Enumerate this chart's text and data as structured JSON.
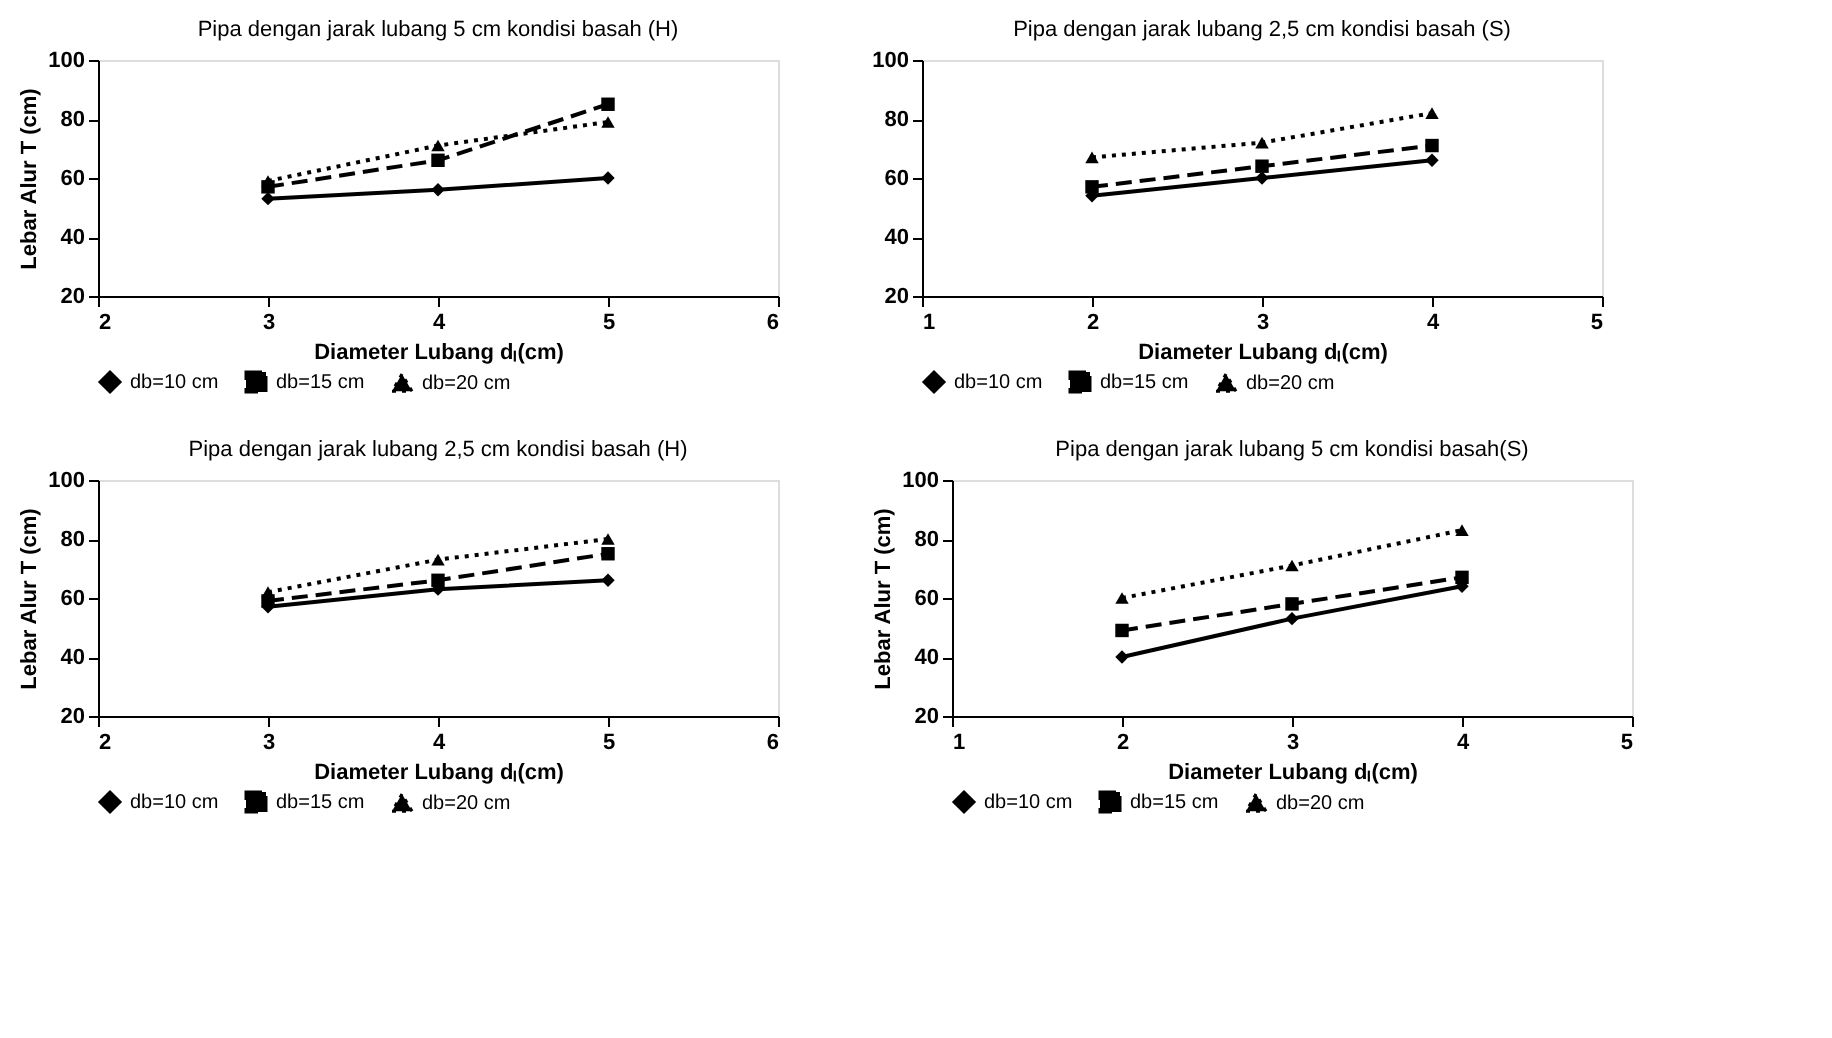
{
  "chart_data": [
    {
      "type": "line",
      "title": "Pipa dengan jarak lubang 5 cm kondisi basah (H)",
      "xlabel": "Diameter Lubang dₗ(cm)",
      "ylabel": "Lebar Alur T (cm)",
      "x": [
        3,
        4,
        5
      ],
      "xlim": [
        2,
        6
      ],
      "xticks": [
        2,
        3,
        4,
        5,
        6
      ],
      "ylim": [
        20,
        100
      ],
      "yticks": [
        20,
        40,
        60,
        80,
        100
      ],
      "grid": false,
      "legend": "bottom",
      "series": [
        {
          "name": "db=10 cm",
          "color": "#000000",
          "marker": "diamond",
          "line_style": "solid",
          "values": [
            53,
            56,
            60
          ]
        },
        {
          "name": "db=15 cm",
          "color": "#000000",
          "marker": "square",
          "line_style": "dashed",
          "values": [
            57,
            66,
            85
          ]
        },
        {
          "name": "db=20 cm",
          "color": "#000000",
          "marker": "triangle",
          "line_style": "dotted",
          "values": [
            59,
            71,
            79
          ]
        }
      ]
    },
    {
      "type": "line",
      "title": "Pipa dengan jarak lubang 2,5 cm kondisi basah (S)",
      "xlabel": "Diameter Lubang dₗ(cm)",
      "x": [
        2,
        3,
        4
      ],
      "xlim": [
        1,
        5
      ],
      "xticks": [
        1,
        2,
        3,
        4,
        5
      ],
      "ylim": [
        20,
        100
      ],
      "yticks": [
        20,
        40,
        60,
        80,
        100
      ],
      "grid": false,
      "legend": "bottom",
      "series": [
        {
          "name": "db=10 cm",
          "color": "#000000",
          "marker": "diamond",
          "line_style": "solid",
          "values": [
            54,
            60,
            66
          ]
        },
        {
          "name": "db=15 cm",
          "color": "#000000",
          "marker": "square",
          "line_style": "dashed",
          "values": [
            57,
            64,
            71
          ]
        },
        {
          "name": "db=20 cm",
          "color": "#000000",
          "marker": "triangle",
          "line_style": "dotted",
          "values": [
            67,
            72,
            82
          ]
        }
      ]
    },
    {
      "type": "line",
      "title": "Pipa dengan jarak lubang 2,5 cm kondisi basah (H)",
      "xlabel": "Diameter Lubang dₗ(cm)",
      "ylabel": "Lebar Alur T (cm)",
      "x": [
        3,
        4,
        5
      ],
      "xlim": [
        2,
        6
      ],
      "xticks": [
        2,
        3,
        4,
        5,
        6
      ],
      "ylim": [
        20,
        100
      ],
      "yticks": [
        20,
        40,
        60,
        80,
        100
      ],
      "grid": false,
      "legend": "bottom",
      "series": [
        {
          "name": "db=10 cm",
          "color": "#000000",
          "marker": "diamond",
          "line_style": "solid",
          "values": [
            57,
            63,
            66
          ]
        },
        {
          "name": "db=15 cm",
          "color": "#000000",
          "marker": "square",
          "line_style": "dashed",
          "values": [
            59,
            66,
            75
          ]
        },
        {
          "name": "db=20 cm",
          "color": "#000000",
          "marker": "triangle",
          "line_style": "dotted",
          "values": [
            62,
            73,
            80
          ]
        }
      ]
    },
    {
      "type": "line",
      "title": "Pipa dengan jarak lubang 5 cm kondisi basah(S)",
      "xlabel": "Diameter Lubang dₗ(cm)",
      "ylabel": "Lebar Alur T (cm)",
      "x": [
        2,
        3,
        4
      ],
      "xlim": [
        1,
        5
      ],
      "xticks": [
        1,
        2,
        3,
        4,
        5
      ],
      "ylim": [
        20,
        100
      ],
      "yticks": [
        20,
        40,
        60,
        80,
        100
      ],
      "grid": false,
      "legend": "bottom",
      "series": [
        {
          "name": "db=10 cm",
          "color": "#000000",
          "marker": "diamond",
          "line_style": "solid",
          "values": [
            40,
            53,
            64
          ]
        },
        {
          "name": "db=15 cm",
          "color": "#000000",
          "marker": "square",
          "line_style": "dashed",
          "values": [
            49,
            58,
            67
          ]
        },
        {
          "name": "db=20 cm",
          "color": "#000000",
          "marker": "triangle",
          "line_style": "dotted",
          "values": [
            60,
            71,
            83
          ]
        }
      ]
    }
  ]
}
